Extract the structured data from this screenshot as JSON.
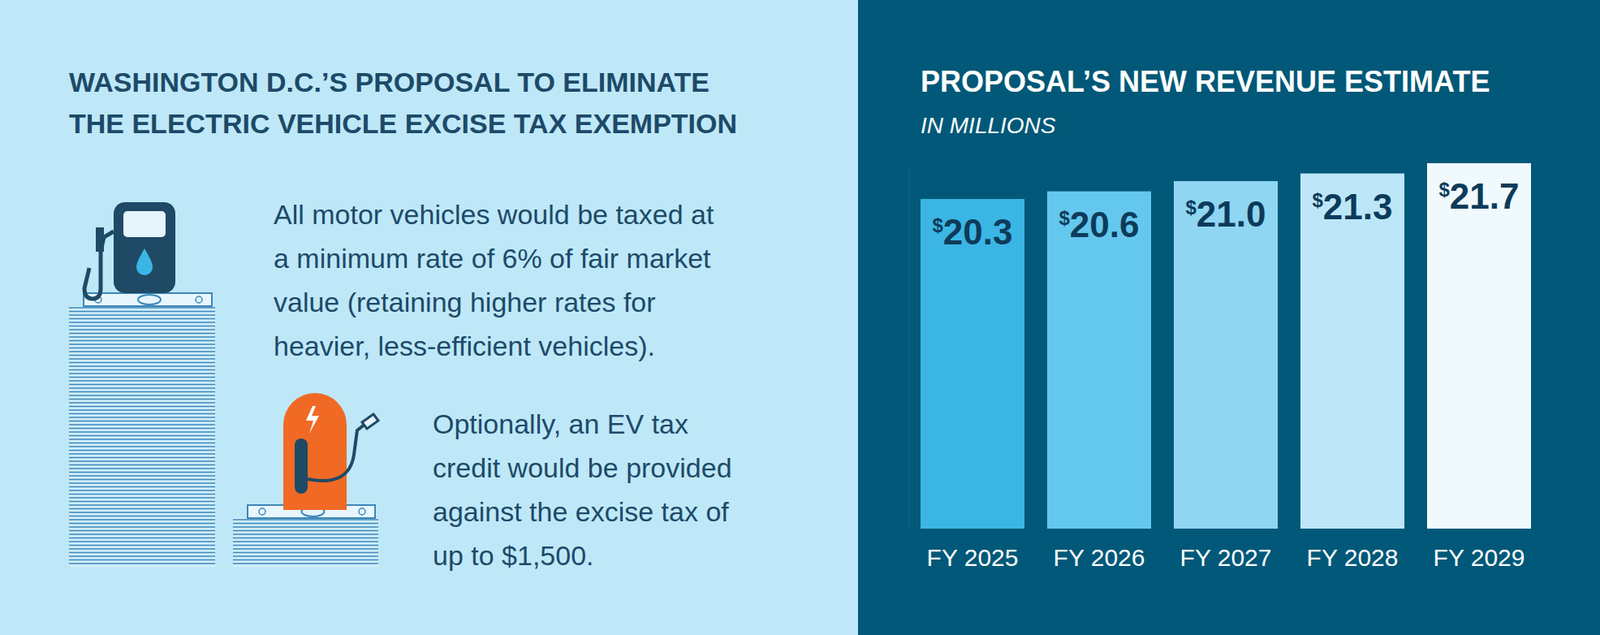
{
  "header": {
    "title_lines": [
      "WASHINGTON D.C.’S PROPOSAL TO ELIMINATE",
      "THE ELECTRIC VEHICLE EXCISE TAX EXEMPTION"
    ]
  },
  "text_blocks": [
    {
      "lines": [
        "All motor vehicles would be taxed at",
        "a minimum rate of 6% of fair market",
        "value (retaining higher rates for",
        "heavier, less-efficient vehicles)."
      ]
    },
    {
      "lines": [
        "Optionally, an EV tax",
        "credit would be provided",
        "against the excise tax of",
        "up to $1,500."
      ]
    }
  ],
  "chart_data": {
    "type": "bar",
    "title": "PROPOSAL’S NEW REVENUE ESTIMATE",
    "subtitle": "IN MILLIONS",
    "categories": [
      "FY 2025",
      "FY 2026",
      "FY 2027",
      "FY 2028",
      "FY 2029"
    ],
    "values": [
      20.3,
      20.6,
      21.0,
      21.3,
      21.7
    ],
    "value_labels": [
      "$20.3",
      "$20.6",
      "$21.0",
      "$21.3",
      "$21.7"
    ],
    "colors": [
      "#3bb6e4",
      "#64c7ed",
      "#8fd6f2",
      "#bde7f8",
      "#f0fafe"
    ],
    "ylim": [
      7.4,
      21.7
    ],
    "data_labels": true,
    "tick_labels": "x"
  }
}
